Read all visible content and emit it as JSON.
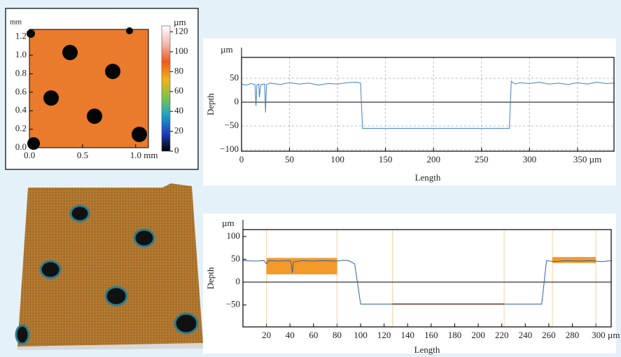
{
  "chart_data": [
    {
      "type": "heatmap",
      "y_unit": "mm",
      "xlim": [
        0,
        1.12
      ],
      "xticks": [
        {
          "value": 0,
          "label": "0.0"
        },
        0.5,
        {
          "value": 1,
          "label": "1.0 mm"
        }
      ],
      "ylim": [
        0,
        1.28
      ],
      "yticks": [
        {
          "value": 0,
          "label": "0.0"
        },
        0.2,
        0.4,
        0.6,
        0.8,
        {
          "value": 1,
          "label": "1.0"
        },
        1.2
      ],
      "color": "#ea7a2c",
      "colorbar": {
        "label": "µm",
        "lim": [
          0,
          126
        ],
        "ticks": [
          0,
          20,
          40,
          60,
          80,
          100,
          120
        ],
        "colors": [
          "#000000",
          "#1f3fbf",
          "#1aa3c8",
          "#7fc24a",
          "#f2b21b",
          "#ee5a1e",
          "#f5b8b0",
          "#ffffff"
        ]
      }
    },
    {
      "type": "line",
      "x_label": "Length",
      "y_label": "Depth",
      "y_unit": "µm",
      "grid": true,
      "xlim": [
        0,
        388
      ],
      "xticks": [
        0,
        50,
        100,
        150,
        200,
        250,
        300,
        {
          "value": 350,
          "label": "350 µm"
        }
      ],
      "ylim": [
        -103,
        94
      ],
      "yticks": [
        {
          "value": -100,
          "label": "−100"
        },
        {
          "value": -50,
          "label": "−50"
        },
        0,
        50
      ],
      "series": [
        {
          "color": "#3d7fc4",
          "x": [
            0,
            5,
            10,
            14,
            15,
            16,
            18,
            18.5,
            20,
            24,
            25,
            26,
            30,
            40,
            50,
            60,
            70,
            80,
            90,
            100,
            110,
            120,
            124,
            126,
            150,
            200,
            250,
            279,
            281,
            285,
            290,
            300,
            310,
            320,
            330,
            340,
            350,
            360,
            370,
            380,
            388
          ],
          "values": [
            38,
            36,
            39,
            37,
            -8,
            36,
            38,
            10,
            37,
            38,
            -22,
            37,
            40,
            37,
            41,
            38,
            40,
            36,
            39,
            38,
            41,
            42,
            40,
            -55,
            -55,
            -55,
            -55,
            -55,
            44,
            38,
            41,
            39,
            42,
            38,
            40,
            37,
            41,
            38,
            42,
            39,
            40
          ]
        }
      ]
    },
    {
      "type": "line",
      "x_label": "Length",
      "y_label": "Depth",
      "y_unit": "µm",
      "grid": false,
      "xlim": [
        0,
        313
      ],
      "xticks": [
        20,
        40,
        60,
        80,
        100,
        120,
        140,
        160,
        180,
        200,
        220,
        240,
        260,
        280,
        {
          "value": 300,
          "label": "300 µm"
        }
      ],
      "ylim": [
        -98,
        115
      ],
      "yticks": [
        {
          "value": -50,
          "label": "−50"
        },
        0,
        50,
        100
      ],
      "regions": [
        {
          "x": [
            20,
            80
          ],
          "y": [
            17,
            53
          ]
        },
        {
          "x": [
            127,
            222
          ],
          "y": [
            -50,
            -46
          ]
        },
        {
          "x": [
            263,
            300
          ],
          "y": [
            42,
            55
          ]
        }
      ],
      "region_color": "#f39a2b",
      "series": [
        {
          "color": "#2f5fa8",
          "x": [
            0,
            10,
            18,
            20,
            22,
            30,
            40,
            41,
            42,
            43,
            50,
            60,
            70,
            80,
            85,
            90,
            95,
            100,
            150,
            200,
            254,
            258,
            265,
            275,
            285,
            295,
            305,
            313
          ],
          "values": [
            47,
            46,
            47,
            40,
            47,
            46,
            47,
            42,
            20,
            44,
            47,
            46,
            47,
            46,
            48,
            47,
            40,
            -48,
            -48,
            -48,
            -48,
            47,
            45,
            47,
            46,
            47,
            45,
            47
          ]
        }
      ]
    }
  ]
}
